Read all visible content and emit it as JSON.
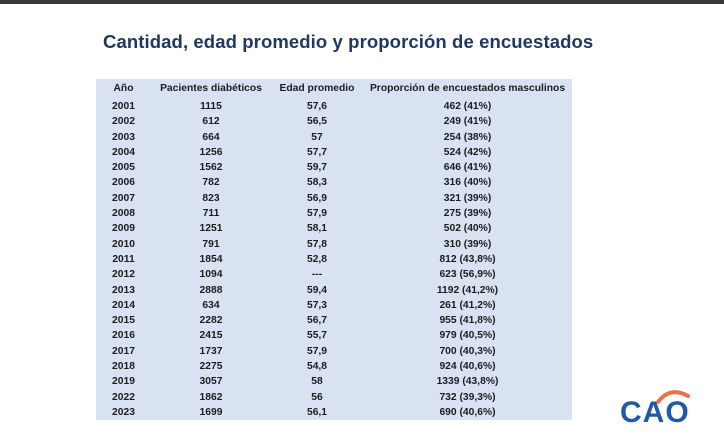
{
  "title": "Cantidad, edad promedio y proporción de encuestados",
  "table": {
    "headers": [
      "Año",
      "Pacientes diabéticos",
      "Edad promedio",
      "Proporción de encuestados masculinos"
    ],
    "rows": [
      [
        "2001",
        "1115",
        "57,6",
        "462 (41%)"
      ],
      [
        "2002",
        "612",
        "56,5",
        "249 (41%)"
      ],
      [
        "2003",
        "664",
        "57",
        "254 (38%)"
      ],
      [
        "2004",
        "1256",
        "57,7",
        "524 (42%)"
      ],
      [
        "2005",
        "1562",
        "59,7",
        "646 (41%)"
      ],
      [
        "2006",
        "782",
        "58,3",
        "316 (40%)"
      ],
      [
        "2007",
        "823",
        "56,9",
        "321 (39%)"
      ],
      [
        "2008",
        "711",
        "57,9",
        "275 (39%)"
      ],
      [
        "2009",
        "1251",
        "58,1",
        "502 (40%)"
      ],
      [
        "2010",
        "791",
        "57,8",
        "310 (39%)"
      ],
      [
        "2011",
        "1854",
        "52,8",
        "812 (43,8%)"
      ],
      [
        "2012",
        "1094",
        "---",
        "623 (56,9%)"
      ],
      [
        "2013",
        "2888",
        "59,4",
        "1192 (41,2%)"
      ],
      [
        "2014",
        "634",
        "57,3",
        "261 (41,2%)"
      ],
      [
        "2015",
        "2282",
        "56,7",
        "955 (41,8%)"
      ],
      [
        "2016",
        "2415",
        "55,7",
        "979 (40,5%)"
      ],
      [
        "2017",
        "1737",
        "57,9",
        "700 (40,3%)"
      ],
      [
        "2018",
        "2275",
        "54,8",
        "924 (40,6%)"
      ],
      [
        "2019",
        "3057",
        "58",
        "1339 (43,8%)"
      ],
      [
        "2022",
        "1862",
        "56",
        "732 (39,3%)"
      ],
      [
        "2023",
        "1699",
        "56,1",
        "690 (40,6%)"
      ]
    ]
  },
  "logo": {
    "text": "CAO",
    "color": "#1f5aa8",
    "accent": "#e8734a"
  },
  "colors": {
    "title": "#1f3864",
    "table_bg": "#d9e2f3"
  }
}
